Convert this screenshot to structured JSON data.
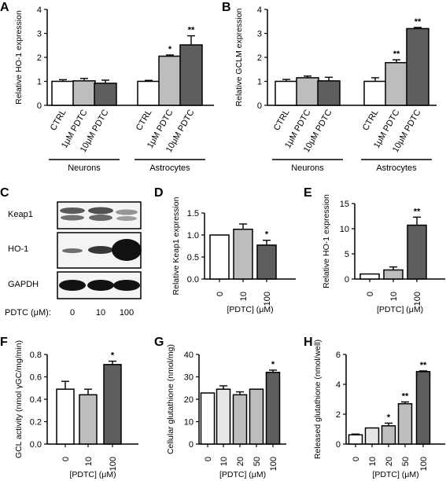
{
  "colors": {
    "white": "#ffffff",
    "light": "#e6e6e6",
    "mid": "#bdbdbd",
    "dark": "#5e5e5e",
    "band": "#1a1a1a"
  },
  "chart_data": [
    {
      "id": "A",
      "panel": "A",
      "type": "bar",
      "ylabel": "Relative HO-1 expression",
      "ylim": [
        0,
        4
      ],
      "yticks": [
        "0",
        "1",
        "2",
        "3",
        "4"
      ],
      "categories": [
        "CTRL",
        "1μM PDTC",
        "10μM PDTC",
        "CTRL",
        "1μM PDTC",
        "10μM PDTC"
      ],
      "values": [
        1.0,
        1.02,
        0.92,
        1.0,
        2.05,
        2.52
      ],
      "errors": [
        0.07,
        0.1,
        0.13,
        0.04,
        0.05,
        0.38
      ],
      "sig": [
        "",
        "",
        "",
        "",
        "*",
        "**"
      ],
      "fills": [
        "white",
        "mid",
        "dark",
        "white",
        "mid",
        "dark"
      ],
      "groups": [
        {
          "label": "Neurons",
          "start": 0,
          "end": 2
        },
        {
          "label": "Astrocytes",
          "start": 3,
          "end": 5
        }
      ]
    },
    {
      "id": "B",
      "panel": "B",
      "type": "bar",
      "ylabel": "Relative GCLM expression",
      "ylim": [
        0,
        4
      ],
      "yticks": [
        "0",
        "1",
        "2",
        "3",
        "4"
      ],
      "categories": [
        "CTRL",
        "1μM PDTC",
        "10μM PDTC",
        "CTRL",
        "1μM PDTC",
        "10μM PDTC"
      ],
      "values": [
        1.0,
        1.15,
        1.02,
        1.0,
        1.78,
        3.2
      ],
      "errors": [
        0.08,
        0.07,
        0.15,
        0.15,
        0.12,
        0.05
      ],
      "sig": [
        "",
        "",
        "",
        "",
        "**",
        "**"
      ],
      "fills": [
        "white",
        "mid",
        "dark",
        "white",
        "mid",
        "dark"
      ],
      "groups": [
        {
          "label": "Neurons",
          "start": 0,
          "end": 2
        },
        {
          "label": "Astrocytes",
          "start": 3,
          "end": 5
        }
      ]
    },
    {
      "id": "D",
      "panel": "D",
      "type": "bar",
      "ylabel": "Relative Keap1 expression",
      "xlabel": "[PDTC] (μM)",
      "ylim": [
        0,
        1.5
      ],
      "yticks": [
        "0.0",
        "0.5",
        "1.0",
        "1.5"
      ],
      "categories": [
        "0",
        "10",
        "100"
      ],
      "values": [
        1.0,
        1.13,
        0.77
      ],
      "errors": [
        0,
        0.12,
        0.11
      ],
      "sig": [
        "",
        "",
        "*"
      ],
      "fills": [
        "white",
        "mid",
        "dark"
      ]
    },
    {
      "id": "E",
      "panel": "E",
      "type": "bar",
      "ylabel": "Relative HO-1 expression",
      "xlabel": "[PDTC] (μM)",
      "ylim": [
        0,
        15
      ],
      "yticks": [
        "0",
        "5",
        "10",
        "15"
      ],
      "categories": [
        "0",
        "10",
        "100"
      ],
      "values": [
        1.0,
        1.8,
        10.7
      ],
      "errors": [
        0,
        0.6,
        1.6
      ],
      "sig": [
        "",
        "",
        "**"
      ],
      "fills": [
        "white",
        "mid",
        "dark"
      ]
    },
    {
      "id": "F",
      "panel": "F",
      "type": "bar",
      "ylabel": "GCL activity (nmol γGC/mg/min)",
      "xlabel": "[PDTC] (μM)",
      "ylim": [
        0,
        0.8
      ],
      "yticks": [
        "0.0",
        "0.2",
        "0.4",
        "0.6",
        "0.8"
      ],
      "categories": [
        "0",
        "10",
        "100"
      ],
      "values": [
        0.49,
        0.44,
        0.71
      ],
      "errors": [
        0.07,
        0.05,
        0.03
      ],
      "sig": [
        "",
        "",
        "*"
      ],
      "fills": [
        "white",
        "mid",
        "dark"
      ]
    },
    {
      "id": "G",
      "panel": "G",
      "type": "bar",
      "ylabel": "Cellular glutathione (nmol/mg)",
      "xlabel": "[PDTC] (μM)",
      "ylim": [
        0,
        40
      ],
      "yticks": [
        "0",
        "10",
        "20",
        "30",
        "40"
      ],
      "categories": [
        "0",
        "10",
        "20",
        "50",
        "100"
      ],
      "values": [
        22.8,
        24.5,
        22.0,
        24.5,
        32.0
      ],
      "errors": [
        0,
        1.5,
        1.3,
        0,
        1.0
      ],
      "sig": [
        "",
        "",
        "",
        "",
        "*"
      ],
      "fills": [
        "white",
        "light",
        "mid",
        "mid",
        "dark"
      ]
    },
    {
      "id": "H",
      "panel": "H",
      "type": "bar",
      "ylabel": "Released glutathione (nmol/well)",
      "xlabel": "[PDTC] (μM)",
      "ylim": [
        0,
        6
      ],
      "yticks": [
        "0",
        "2",
        "4",
        "6"
      ],
      "categories": [
        "0",
        "10",
        "20",
        "50",
        "100"
      ],
      "values": [
        0.62,
        1.08,
        1.22,
        2.7,
        4.85
      ],
      "errors": [
        0.05,
        0,
        0.18,
        0.12,
        0.05
      ],
      "sig": [
        "",
        "",
        "*",
        "**",
        "**"
      ],
      "fills": [
        "white",
        "light",
        "mid",
        "mid",
        "dark"
      ]
    }
  ],
  "blot": {
    "panel": "C",
    "rows": [
      "Keap1",
      "HO-1",
      "GAPDH"
    ],
    "xlabel": "PDTC (μM):",
    "lanes": [
      "0",
      "10",
      "100"
    ]
  }
}
